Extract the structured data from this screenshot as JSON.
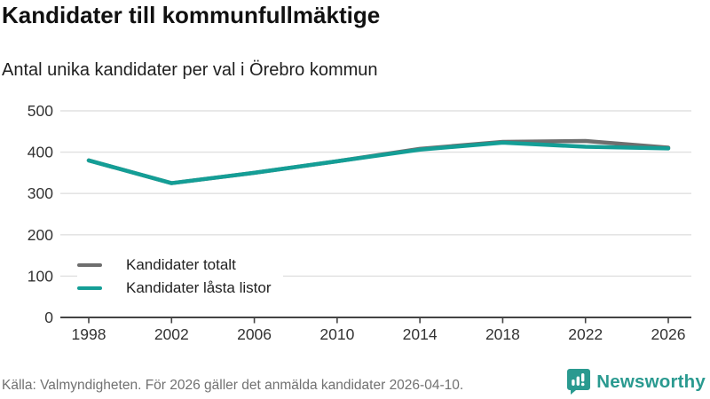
{
  "title": "Kandidater till kommunfullmäktige",
  "subtitle": "Antal unika kandidater per val i Örebro kommun",
  "footer": {
    "source": "Källa: Valmyndigheten. För 2026 gäller det anmälda kandidater 2026-04-10.",
    "brand": "Newsworthy"
  },
  "colors": {
    "total_line": "#6E6E6E",
    "locked_line": "#149E96",
    "grid": "#E0E0E0",
    "axis": "#444444",
    "tick_text": "#333333",
    "brand": "#2A9A90"
  },
  "chart_data": {
    "type": "line",
    "x": [
      1998,
      2002,
      2006,
      2010,
      2014,
      2018,
      2022,
      2026
    ],
    "series": [
      {
        "name": "Kandidater totalt",
        "color": "#6E6E6E",
        "values": [
          380,
          325,
          350,
          378,
          408,
          425,
          427,
          411
        ]
      },
      {
        "name": "Kandidater låsta listor",
        "color": "#149E96",
        "values": [
          380,
          325,
          350,
          378,
          406,
          423,
          413,
          409
        ]
      }
    ],
    "title": "Kandidater till kommunfullmäktige",
    "subtitle": "Antal unika kandidater per val i Örebro kommun",
    "xlabel": "",
    "ylabel": "",
    "ylim": [
      0,
      500
    ],
    "yticks": [
      0,
      100,
      200,
      300,
      400,
      500
    ],
    "xticks": [
      1998,
      2002,
      2006,
      2010,
      2014,
      2018,
      2022,
      2026
    ],
    "grid": true,
    "legend_position": "inside-bottom-left"
  }
}
